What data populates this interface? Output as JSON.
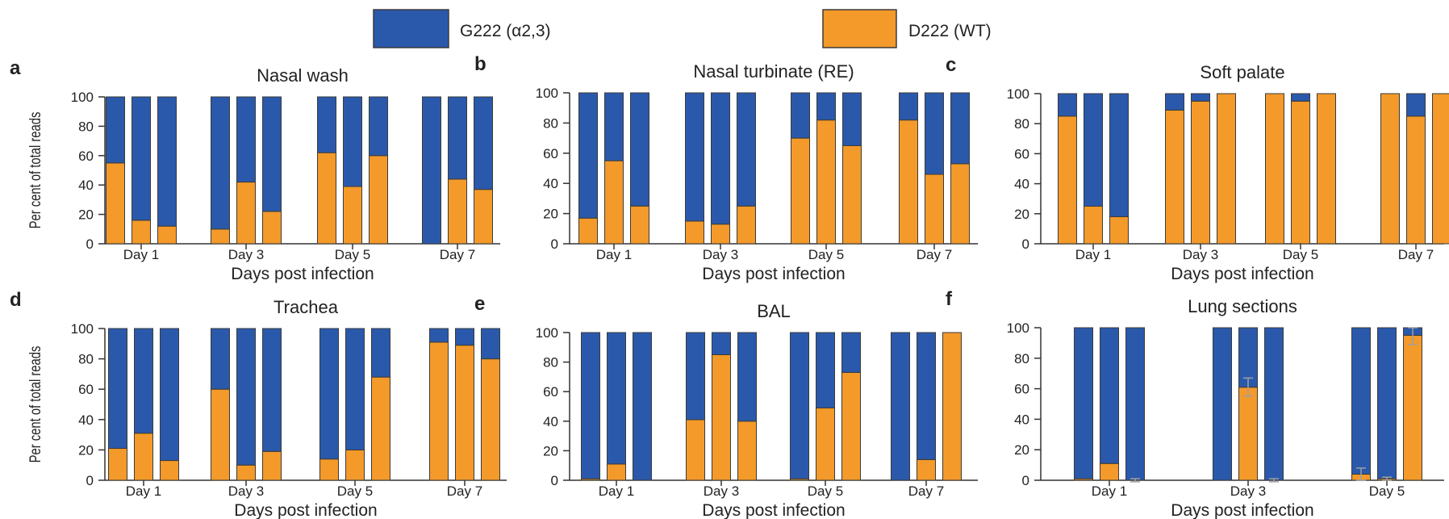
{
  "colors": {
    "G222": "#2a59ab",
    "D222": "#f39a2a",
    "edge": "#3b3b3b",
    "errorbar": "#a0a0a0"
  },
  "legend": [
    {
      "label": "G222 (α2,3)",
      "color": "#2a59ab"
    },
    {
      "label": "D222 (WT)",
      "color": "#f39a2a"
    }
  ],
  "shared": {
    "ylabel": "Per cent of total reads",
    "xlabel": "Days post infection"
  },
  "chart_data": [
    {
      "letter": "a",
      "title": "Nasal wash",
      "type": "bar",
      "stacked": true,
      "xlabel": "Days post infection",
      "ylabel": "Per cent of total reads",
      "ylim": [
        0,
        100
      ],
      "yticks": [
        0,
        20,
        40,
        60,
        80,
        100
      ],
      "categories": [
        "Day 1",
        "Day 3",
        "Day 5",
        "Day 7"
      ],
      "series": [
        {
          "name": "D222 (WT)",
          "values": [
            [
              55,
              16,
              12
            ],
            [
              10,
              42,
              22
            ],
            [
              62,
              39,
              60
            ],
            [
              0,
              44,
              37
            ]
          ]
        },
        {
          "name": "G222 (α2,3)",
          "values": [
            [
              45,
              84,
              88
            ],
            [
              90,
              58,
              78
            ],
            [
              38,
              61,
              40
            ],
            [
              100,
              56,
              63
            ]
          ]
        }
      ]
    },
    {
      "letter": "b",
      "title": "Nasal turbinate (RE)",
      "type": "bar",
      "stacked": true,
      "xlabel": "Days post infection",
      "ylabel": "",
      "ylim": [
        0,
        100
      ],
      "yticks": [
        0,
        20,
        40,
        60,
        80,
        100
      ],
      "categories": [
        "Day 1",
        "Day 3",
        "Day 5",
        "Day 7"
      ],
      "series": [
        {
          "name": "D222 (WT)",
          "values": [
            [
              17,
              55,
              25
            ],
            [
              15,
              13,
              25
            ],
            [
              70,
              82,
              65
            ],
            [
              82,
              46,
              53
            ]
          ]
        },
        {
          "name": "G222 (α2,3)",
          "values": [
            [
              83,
              45,
              75
            ],
            [
              85,
              87,
              75
            ],
            [
              30,
              18,
              35
            ],
            [
              18,
              54,
              47
            ]
          ]
        }
      ]
    },
    {
      "letter": "c",
      "title": "Soft palate",
      "type": "bar",
      "stacked": true,
      "xlabel": "Days post infection",
      "ylabel": "",
      "ylim": [
        0,
        100
      ],
      "yticks": [
        0,
        20,
        40,
        60,
        80,
        100
      ],
      "categories": [
        "Day 1",
        "Day 3",
        "Day 5",
        "Day 7"
      ],
      "series": [
        {
          "name": "D222 (WT)",
          "values": [
            [
              85,
              25,
              18
            ],
            [
              89,
              95,
              100
            ],
            [
              100,
              95,
              100
            ],
            [
              100,
              85,
              100
            ]
          ]
        },
        {
          "name": "G222 (α2,3)",
          "values": [
            [
              15,
              75,
              82
            ],
            [
              11,
              5,
              0
            ],
            [
              0,
              5,
              0
            ],
            [
              0,
              15,
              0
            ]
          ]
        }
      ]
    },
    {
      "letter": "d",
      "title": "Trachea",
      "type": "bar",
      "stacked": true,
      "xlabel": "Days post infection",
      "ylabel": "Per cent of total reads",
      "ylim": [
        0,
        100
      ],
      "yticks": [
        0,
        20,
        40,
        60,
        80,
        100
      ],
      "categories": [
        "Day 1",
        "Day 3",
        "Day 5",
        "Day 7"
      ],
      "series": [
        {
          "name": "D222 (WT)",
          "values": [
            [
              21,
              31,
              13
            ],
            [
              60,
              10,
              19
            ],
            [
              14,
              20,
              68
            ],
            [
              91,
              89,
              80
            ]
          ]
        },
        {
          "name": "G222 (α2,3)",
          "values": [
            [
              79,
              69,
              87
            ],
            [
              40,
              90,
              81
            ],
            [
              86,
              80,
              32
            ],
            [
              9,
              11,
              20
            ]
          ]
        }
      ]
    },
    {
      "letter": "e",
      "title": "BAL",
      "type": "bar",
      "stacked": true,
      "xlabel": "Days post infection",
      "ylabel": "",
      "ylim": [
        0,
        100
      ],
      "yticks": [
        0,
        20,
        40,
        60,
        80,
        100
      ],
      "categories": [
        "Day 1",
        "Day 3",
        "Day 5",
        "Day 7"
      ],
      "series": [
        {
          "name": "D222 (WT)",
          "values": [
            [
              1,
              11,
              0
            ],
            [
              41,
              85,
              40
            ],
            [
              1,
              49,
              73
            ],
            [
              0,
              14,
              100
            ]
          ]
        },
        {
          "name": "G222 (α2,3)",
          "values": [
            [
              99,
              89,
              100
            ],
            [
              59,
              15,
              60
            ],
            [
              99,
              51,
              27
            ],
            [
              100,
              86,
              0
            ]
          ]
        }
      ]
    },
    {
      "letter": "f",
      "title": "Lung sections",
      "type": "bar",
      "stacked": true,
      "xlabel": "Days post infection",
      "ylabel": "",
      "ylim": [
        0,
        100
      ],
      "yticks": [
        0,
        20,
        40,
        60,
        80,
        100
      ],
      "categories": [
        "Day 1",
        "Day 3",
        "Day 5"
      ],
      "series": [
        {
          "name": "D222 (WT)",
          "values": [
            [
              1,
              11,
              0
            ],
            [
              0,
              61,
              0
            ],
            [
              4,
              1,
              95
            ]
          ]
        },
        {
          "name": "G222 (α2,3)",
          "values": [
            [
              99,
              89,
              100
            ],
            [
              100,
              39,
              100
            ],
            [
              96,
              99,
              5
            ]
          ]
        }
      ],
      "errorbars": [
        [
          0,
          0,
          1
        ],
        [
          0,
          6,
          1
        ],
        [
          4,
          1,
          6
        ]
      ]
    }
  ]
}
